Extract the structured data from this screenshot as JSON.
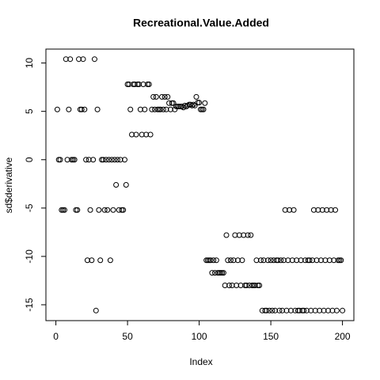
{
  "chart_data": {
    "type": "scatter",
    "title": "Recreational.Value.Added",
    "x_label": "Index",
    "y_label": "sd$derivative",
    "x": [
      1,
      2,
      3,
      4,
      5,
      6,
      7,
      8,
      9,
      10,
      11,
      12,
      13,
      14,
      15,
      16,
      17,
      18,
      19,
      20,
      21,
      22,
      23,
      24,
      25,
      26,
      27,
      28,
      29,
      30,
      31,
      32,
      33,
      34,
      35,
      36,
      37,
      38,
      39,
      40,
      41,
      42,
      43,
      44,
      45,
      46,
      47,
      48,
      49,
      50,
      51,
      52,
      53,
      54,
      55,
      56,
      57,
      58,
      59,
      60,
      61,
      62,
      63,
      64,
      65,
      66,
      67,
      68,
      69,
      70,
      71,
      72,
      73,
      74,
      75,
      76,
      77,
      78,
      79,
      80,
      81,
      82,
      83,
      84,
      85,
      86,
      87,
      88,
      89,
      90,
      91,
      92,
      93,
      94,
      95,
      96,
      97,
      98,
      99,
      100,
      101,
      102,
      103,
      104,
      105,
      106,
      107,
      108,
      109,
      110,
      111,
      112,
      113,
      114,
      115,
      116,
      117,
      118,
      119,
      120,
      121,
      122,
      123,
      124,
      125,
      126,
      127,
      128,
      129,
      130,
      131,
      132,
      133,
      134,
      135,
      136,
      137,
      138,
      139,
      140,
      141,
      142,
      143,
      144,
      145,
      146,
      147,
      148,
      149,
      150,
      151,
      152,
      153,
      154,
      155,
      156,
      157,
      158,
      159,
      160,
      161,
      162,
      163,
      164,
      165,
      166,
      167,
      168,
      169,
      170,
      171,
      172,
      173,
      174,
      175,
      176,
      177,
      178,
      179,
      180,
      181,
      182,
      183,
      184,
      185,
      186,
      187,
      188,
      189,
      190,
      191,
      192,
      193,
      194,
      195,
      196,
      197,
      198,
      199,
      200
    ],
    "values": [
      5.2,
      0,
      0,
      -5.2,
      -5.2,
      -5.2,
      10.4,
      0,
      5.2,
      10.4,
      0,
      0,
      0,
      -5.2,
      -5.2,
      10.4,
      5.2,
      5.2,
      10.4,
      5.2,
      0,
      -10.4,
      0,
      -5.2,
      -10.4,
      0,
      10.4,
      -15.6,
      5.2,
      -5.2,
      -10.4,
      0,
      0,
      -5.2,
      0,
      -5.2,
      0,
      -10.4,
      0,
      -5.2,
      0,
      -2.6,
      0,
      -5.2,
      0,
      -5.2,
      -5.2,
      0,
      -2.6,
      7.8,
      7.8,
      5.2,
      2.6,
      7.8,
      7.8,
      2.6,
      7.8,
      7.8,
      5.2,
      2.6,
      7.8,
      5.2,
      2.6,
      7.8,
      7.8,
      2.6,
      5.2,
      6.5,
      5.2,
      6.5,
      5.2,
      5.2,
      5.2,
      6.5,
      5.2,
      6.5,
      5.2,
      6.5,
      5.85,
      5.2,
      5.85,
      5.85,
      5.2,
      5.5,
      5.5,
      5.5,
      5.5,
      5.5,
      5.4,
      5.6,
      5.5,
      5.6,
      5.7,
      5.7,
      5.6,
      5.7,
      5.6,
      6.5,
      5.9,
      5.9,
      5.2,
      5.2,
      5.2,
      5.85,
      -10.4,
      -10.4,
      -10.4,
      -10.4,
      -11.7,
      -10.4,
      -11.7,
      -10.4,
      -11.7,
      -11.7,
      -11.7,
      -11.7,
      -11.7,
      -13,
      -7.8,
      -10.4,
      -13,
      -10.4,
      -13,
      -10.4,
      -7.8,
      -13,
      -10.4,
      -7.8,
      -13,
      -10.4,
      -7.8,
      -13,
      -13,
      -7.8,
      -13,
      -7.8,
      -13,
      -13,
      -13,
      -10.4,
      -13,
      -13,
      -10.4,
      -15.6,
      -10.4,
      -15.6,
      -15.6,
      -10.4,
      -15.6,
      -10.4,
      -15.6,
      -10.4,
      -15.6,
      -10.4,
      -10.4,
      -15.6,
      -10.4,
      -15.6,
      -10.4,
      -5.2,
      -15.6,
      -10.4,
      -5.2,
      -15.6,
      -10.4,
      -5.2,
      -15.6,
      -10.4,
      -15.6,
      -15.6,
      -10.4,
      -15.6,
      -15.6,
      -10.4,
      -15.6,
      -10.4,
      -10.4,
      -15.6,
      -10.4,
      -5.2,
      -15.6,
      -10.4,
      -5.2,
      -15.6,
      -10.4,
      -5.2,
      -15.6,
      -10.4,
      -5.2,
      -15.6,
      -10.4,
      -5.2,
      -15.6,
      -10.4,
      -5.2,
      -15.6,
      -10.4,
      -10.4,
      -10.4,
      -15.6
    ],
    "color": "#000000",
    "xlim": [
      -6.96,
      207.96
    ],
    "xticks": [
      0,
      50,
      100,
      150,
      200
    ],
    "ylim": [
      -16.64,
      11.44
    ],
    "yticks": [
      -15,
      -10,
      -5,
      0,
      5,
      10
    ]
  }
}
